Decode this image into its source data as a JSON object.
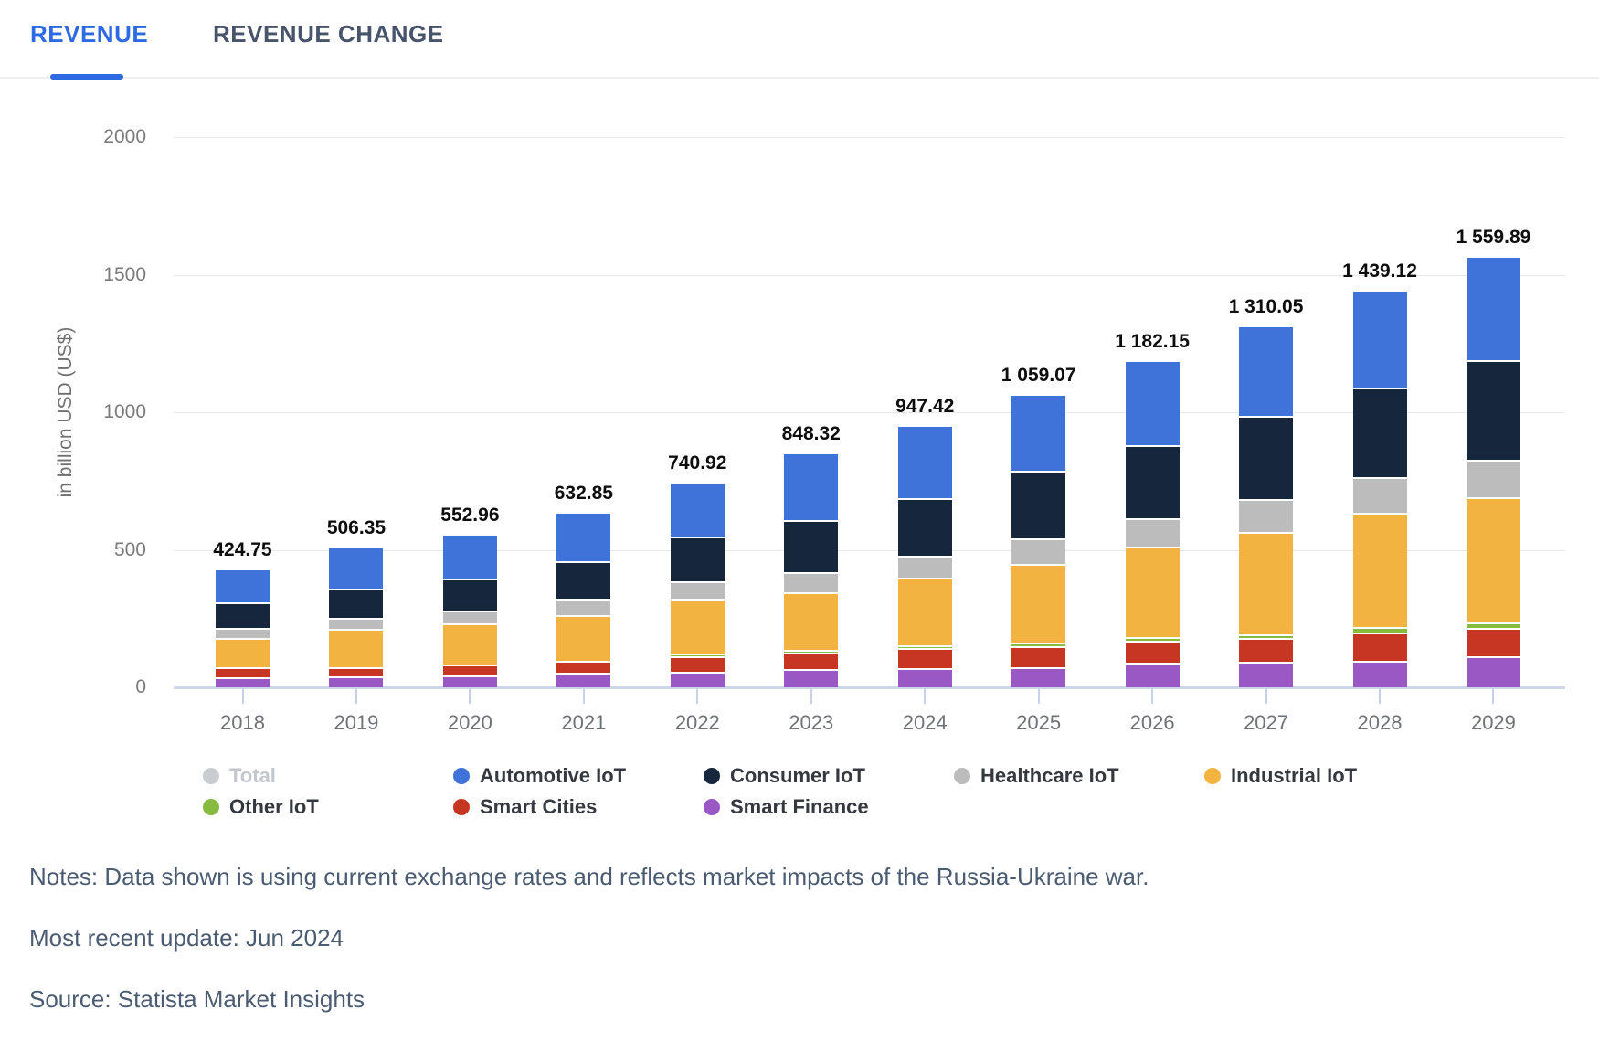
{
  "tabs": [
    {
      "label": "REVENUE",
      "active": true
    },
    {
      "label": "REVENUE CHANGE",
      "active": false
    }
  ],
  "chart_data": {
    "type": "bar",
    "stacked": true,
    "ylabel": "in billion USD (US$)",
    "ylim": [
      0,
      2000
    ],
    "yticks": [
      0,
      500,
      1000,
      1500,
      2000
    ],
    "grid": true,
    "legend_position": "bottom",
    "categories": [
      "2018",
      "2019",
      "2020",
      "2021",
      "2022",
      "2023",
      "2024",
      "2025",
      "2026",
      "2027",
      "2028",
      "2029"
    ],
    "totals": [
      424.75,
      506.35,
      552.96,
      632.85,
      740.92,
      848.32,
      947.42,
      1059.07,
      1182.15,
      1310.05,
      1439.12,
      1559.89
    ],
    "total_labels": [
      "424.75",
      "506.35",
      "552.96",
      "632.85",
      "740.92",
      "848.32",
      "947.42",
      "1 059.07",
      "1 182.15",
      "1 310.05",
      "1 439.12",
      "1 559.89"
    ],
    "series": [
      {
        "name": "Smart Finance",
        "color": "#9a58c5",
        "values": [
          37.35,
          38.1,
          43.61,
          53.5,
          57.57,
          65.82,
          69.22,
          73.57,
          88.65,
          91.55,
          97.62,
          111.89
        ]
      },
      {
        "name": "Smart Cities",
        "color": "#c63622",
        "values": [
          34.6,
          35.5,
          38.1,
          42.4,
          54.7,
          58.7,
          72.25,
          76.0,
          80.0,
          86.5,
          103.0,
          103.5
        ]
      },
      {
        "name": "Other IoT",
        "color": "#86bb40",
        "values": [
          2.0,
          2.4,
          2.8,
          3.0,
          4.95,
          8.0,
          10.0,
          12.0,
          14.0,
          16.0,
          18.0,
          20.0
        ]
      },
      {
        "name": "Industrial IoT",
        "color": "#f2b340",
        "values": [
          108.9,
          140.1,
          150.1,
          167.2,
          199.2,
          211.4,
          246.5,
          288.0,
          328.0,
          370.0,
          416.0,
          457.0
        ]
      },
      {
        "name": "Healthcare IoT",
        "color": "#bcbcbc",
        "values": [
          34.6,
          38.7,
          46.65,
          60.5,
          63.7,
          73.2,
          81.05,
          90.5,
          103.5,
          121.0,
          130.0,
          135.5
        ]
      },
      {
        "name": "Consumer IoT",
        "color": "#16273d",
        "values": [
          93.3,
          104.9,
          115.8,
          134.6,
          162.0,
          188.1,
          209.4,
          247.0,
          265.0,
          302.0,
          325.5,
          361.0
        ]
      },
      {
        "name": "Automotive IoT",
        "color": "#3f73da",
        "values": [
          114.0,
          146.65,
          155.9,
          171.65,
          198.8,
          243.1,
          259.0,
          272.0,
          303.0,
          323.0,
          349.0,
          371.0
        ]
      }
    ],
    "legend": [
      {
        "label": "Total",
        "color": "#c9cdd2",
        "disabled": true
      },
      {
        "label": "Automotive IoT",
        "color": "#3f73da",
        "disabled": false
      },
      {
        "label": "Consumer IoT",
        "color": "#16273d",
        "disabled": false
      },
      {
        "label": "Healthcare IoT",
        "color": "#bcbcbc",
        "disabled": false
      },
      {
        "label": "Industrial IoT",
        "color": "#f2b340",
        "disabled": false
      },
      {
        "label": "Other IoT",
        "color": "#86bb40",
        "disabled": false
      },
      {
        "label": "Smart Cities",
        "color": "#c63622",
        "disabled": false
      },
      {
        "label": "Smart Finance",
        "color": "#9a58c5",
        "disabled": false
      }
    ]
  },
  "notes": {
    "note": "Notes: Data shown is using current exchange rates and reflects market impacts of the Russia-Ukraine war.",
    "update": "Most recent update: Jun 2024",
    "source": "Source: Statista Market Insights"
  }
}
